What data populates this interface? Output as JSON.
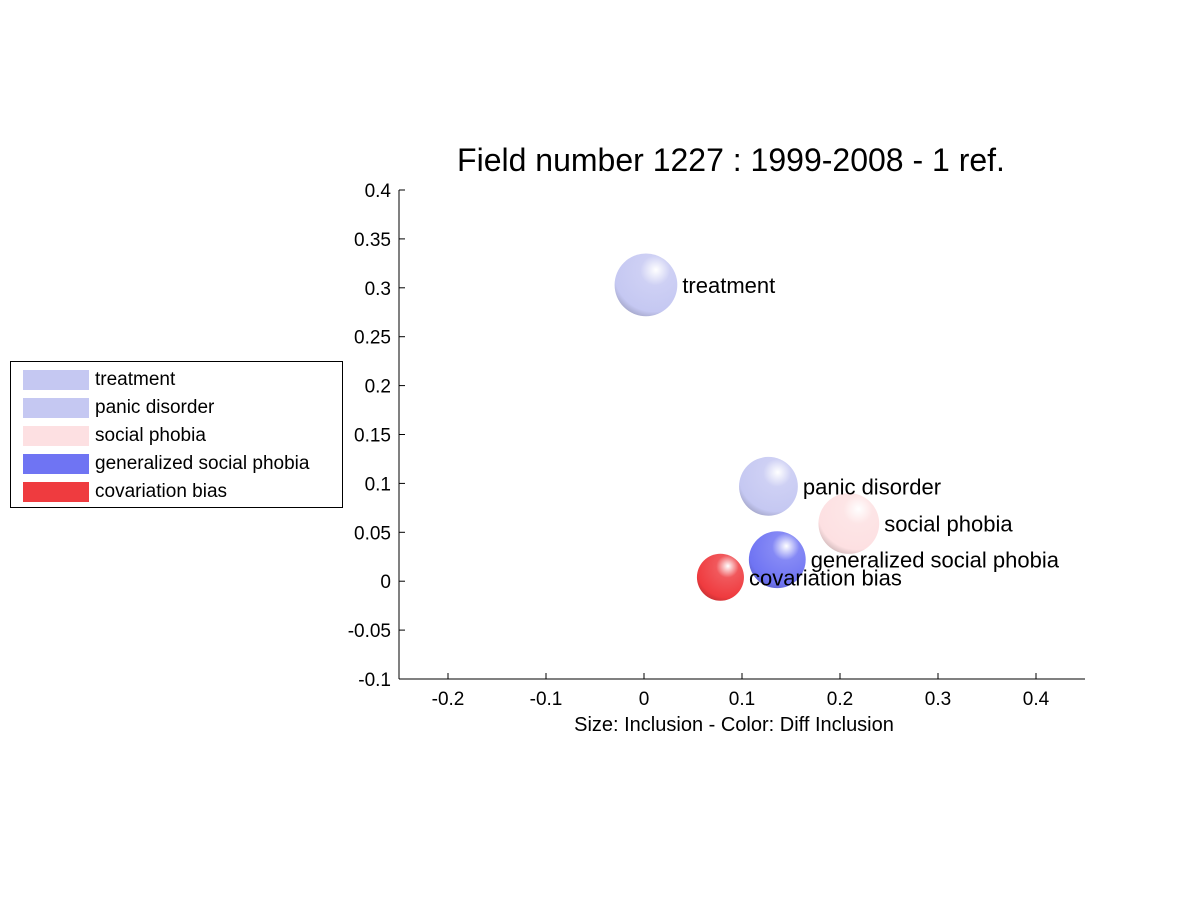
{
  "chart_data": {
    "type": "scatter",
    "title": "Field number 1227 : 1999-2008  - 1 ref.",
    "xlabel": "Size: Inclusion - Color: Diff Inclusion",
    "ylabel": "",
    "xlim": [
      -0.25,
      0.45
    ],
    "ylim": [
      -0.1,
      0.4
    ],
    "xticks": [
      -0.2,
      -0.1,
      0,
      0.1,
      0.2,
      0.3,
      0.4
    ],
    "yticks": [
      -0.1,
      -0.05,
      0,
      0.05,
      0.1,
      0.15,
      0.2,
      0.25,
      0.3,
      0.35,
      0.4
    ],
    "xtick_labels": [
      "-0.2",
      "-0.1",
      "0",
      "0.1",
      "0.2",
      "0.3",
      "0.4"
    ],
    "ytick_labels": [
      "-0.1",
      "-0.05",
      "0",
      "0.05",
      "0.1",
      "0.15",
      "0.2",
      "0.25",
      "0.3",
      "0.35",
      "0.4"
    ],
    "grid": false,
    "legend_position": "left",
    "points": [
      {
        "label": "treatment",
        "x": 0.002,
        "y": 0.303,
        "size": 0.032,
        "color": "#c5c8f2"
      },
      {
        "label": "panic disorder",
        "x": 0.127,
        "y": 0.097,
        "size": 0.03,
        "color": "#c5c8f2"
      },
      {
        "label": "social phobia",
        "x": 0.209,
        "y": 0.059,
        "size": 0.031,
        "color": "#fde0e2"
      },
      {
        "label": "generalized social phobia",
        "x": 0.136,
        "y": 0.022,
        "size": 0.029,
        "color": "#6f74f3"
      },
      {
        "label": "covariation bias",
        "x": 0.078,
        "y": 0.004,
        "size": 0.024,
        "color": "#ef3b3f"
      }
    ]
  },
  "legend": {
    "items": [
      {
        "label": "treatment",
        "color": "#c5c8f2"
      },
      {
        "label": "panic disorder",
        "color": "#c5c8f2"
      },
      {
        "label": "social phobia",
        "color": "#fde0e2"
      },
      {
        "label": "generalized social phobia",
        "color": "#6f74f3"
      },
      {
        "label": "covariation bias",
        "color": "#ef3b3f"
      }
    ]
  }
}
